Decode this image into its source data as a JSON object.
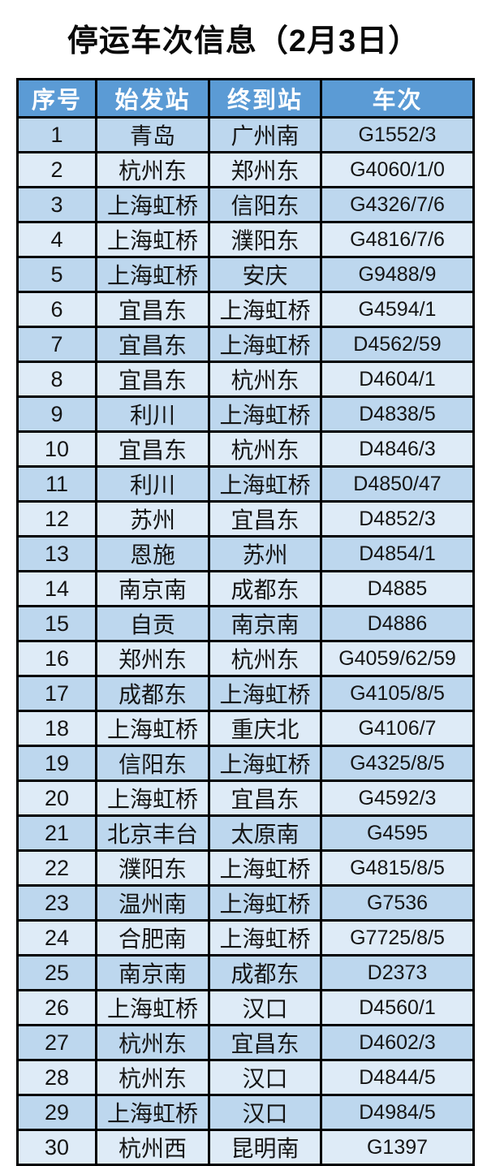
{
  "page": {
    "title": "停运车次信息（2月3日）"
  },
  "table": {
    "headers": [
      "序号",
      "始发站",
      "终到站",
      "车次"
    ],
    "rows": [
      [
        "1",
        "青岛",
        "广州南",
        "G1552/3"
      ],
      [
        "2",
        "杭州东",
        "郑州东",
        "G4060/1/0"
      ],
      [
        "3",
        "上海虹桥",
        "信阳东",
        "G4326/7/6"
      ],
      [
        "4",
        "上海虹桥",
        "濮阳东",
        "G4816/7/6"
      ],
      [
        "5",
        "上海虹桥",
        "安庆",
        "G9488/9"
      ],
      [
        "6",
        "宜昌东",
        "上海虹桥",
        "G4594/1"
      ],
      [
        "7",
        "宜昌东",
        "上海虹桥",
        "D4562/59"
      ],
      [
        "8",
        "宜昌东",
        "杭州东",
        "D4604/1"
      ],
      [
        "9",
        "利川",
        "上海虹桥",
        "D4838/5"
      ],
      [
        "10",
        "宜昌东",
        "杭州东",
        "D4846/3"
      ],
      [
        "11",
        "利川",
        "上海虹桥",
        "D4850/47"
      ],
      [
        "12",
        "苏州",
        "宜昌东",
        "D4852/3"
      ],
      [
        "13",
        "恩施",
        "苏州",
        "D4854/1"
      ],
      [
        "14",
        "南京南",
        "成都东",
        "D4885"
      ],
      [
        "15",
        "自贡",
        "南京南",
        "D4886"
      ],
      [
        "16",
        "郑州东",
        "杭州东",
        "G4059/62/59"
      ],
      [
        "17",
        "成都东",
        "上海虹桥",
        "G4105/8/5"
      ],
      [
        "18",
        "上海虹桥",
        "重庆北",
        "G4106/7"
      ],
      [
        "19",
        "信阳东",
        "上海虹桥",
        "G4325/8/5"
      ],
      [
        "20",
        "上海虹桥",
        "宜昌东",
        "G4592/3"
      ],
      [
        "21",
        "北京丰台",
        "太原南",
        "G4595"
      ],
      [
        "22",
        "濮阳东",
        "上海虹桥",
        "G4815/8/5"
      ],
      [
        "23",
        "温州南",
        "上海虹桥",
        "G7536"
      ],
      [
        "24",
        "合肥南",
        "上海虹桥",
        "G7725/8/5"
      ],
      [
        "25",
        "南京南",
        "成都东",
        "D2373"
      ],
      [
        "26",
        "上海虹桥",
        "汉口",
        "D4560/1"
      ],
      [
        "27",
        "杭州东",
        "宜昌东",
        "D4602/3"
      ],
      [
        "28",
        "杭州东",
        "汉口",
        "D4844/5"
      ],
      [
        "29",
        "上海虹桥",
        "汉口",
        "D4984/5"
      ],
      [
        "30",
        "杭州西",
        "昆明南",
        "G1397"
      ]
    ]
  },
  "colors": {
    "header_bg": "#5b9bd5",
    "header_text": "#ffffff",
    "row_odd_bg": "#bdd7ee",
    "row_even_bg": "#deebf7",
    "border": "#000000",
    "title_text": "#0a0a0a"
  }
}
